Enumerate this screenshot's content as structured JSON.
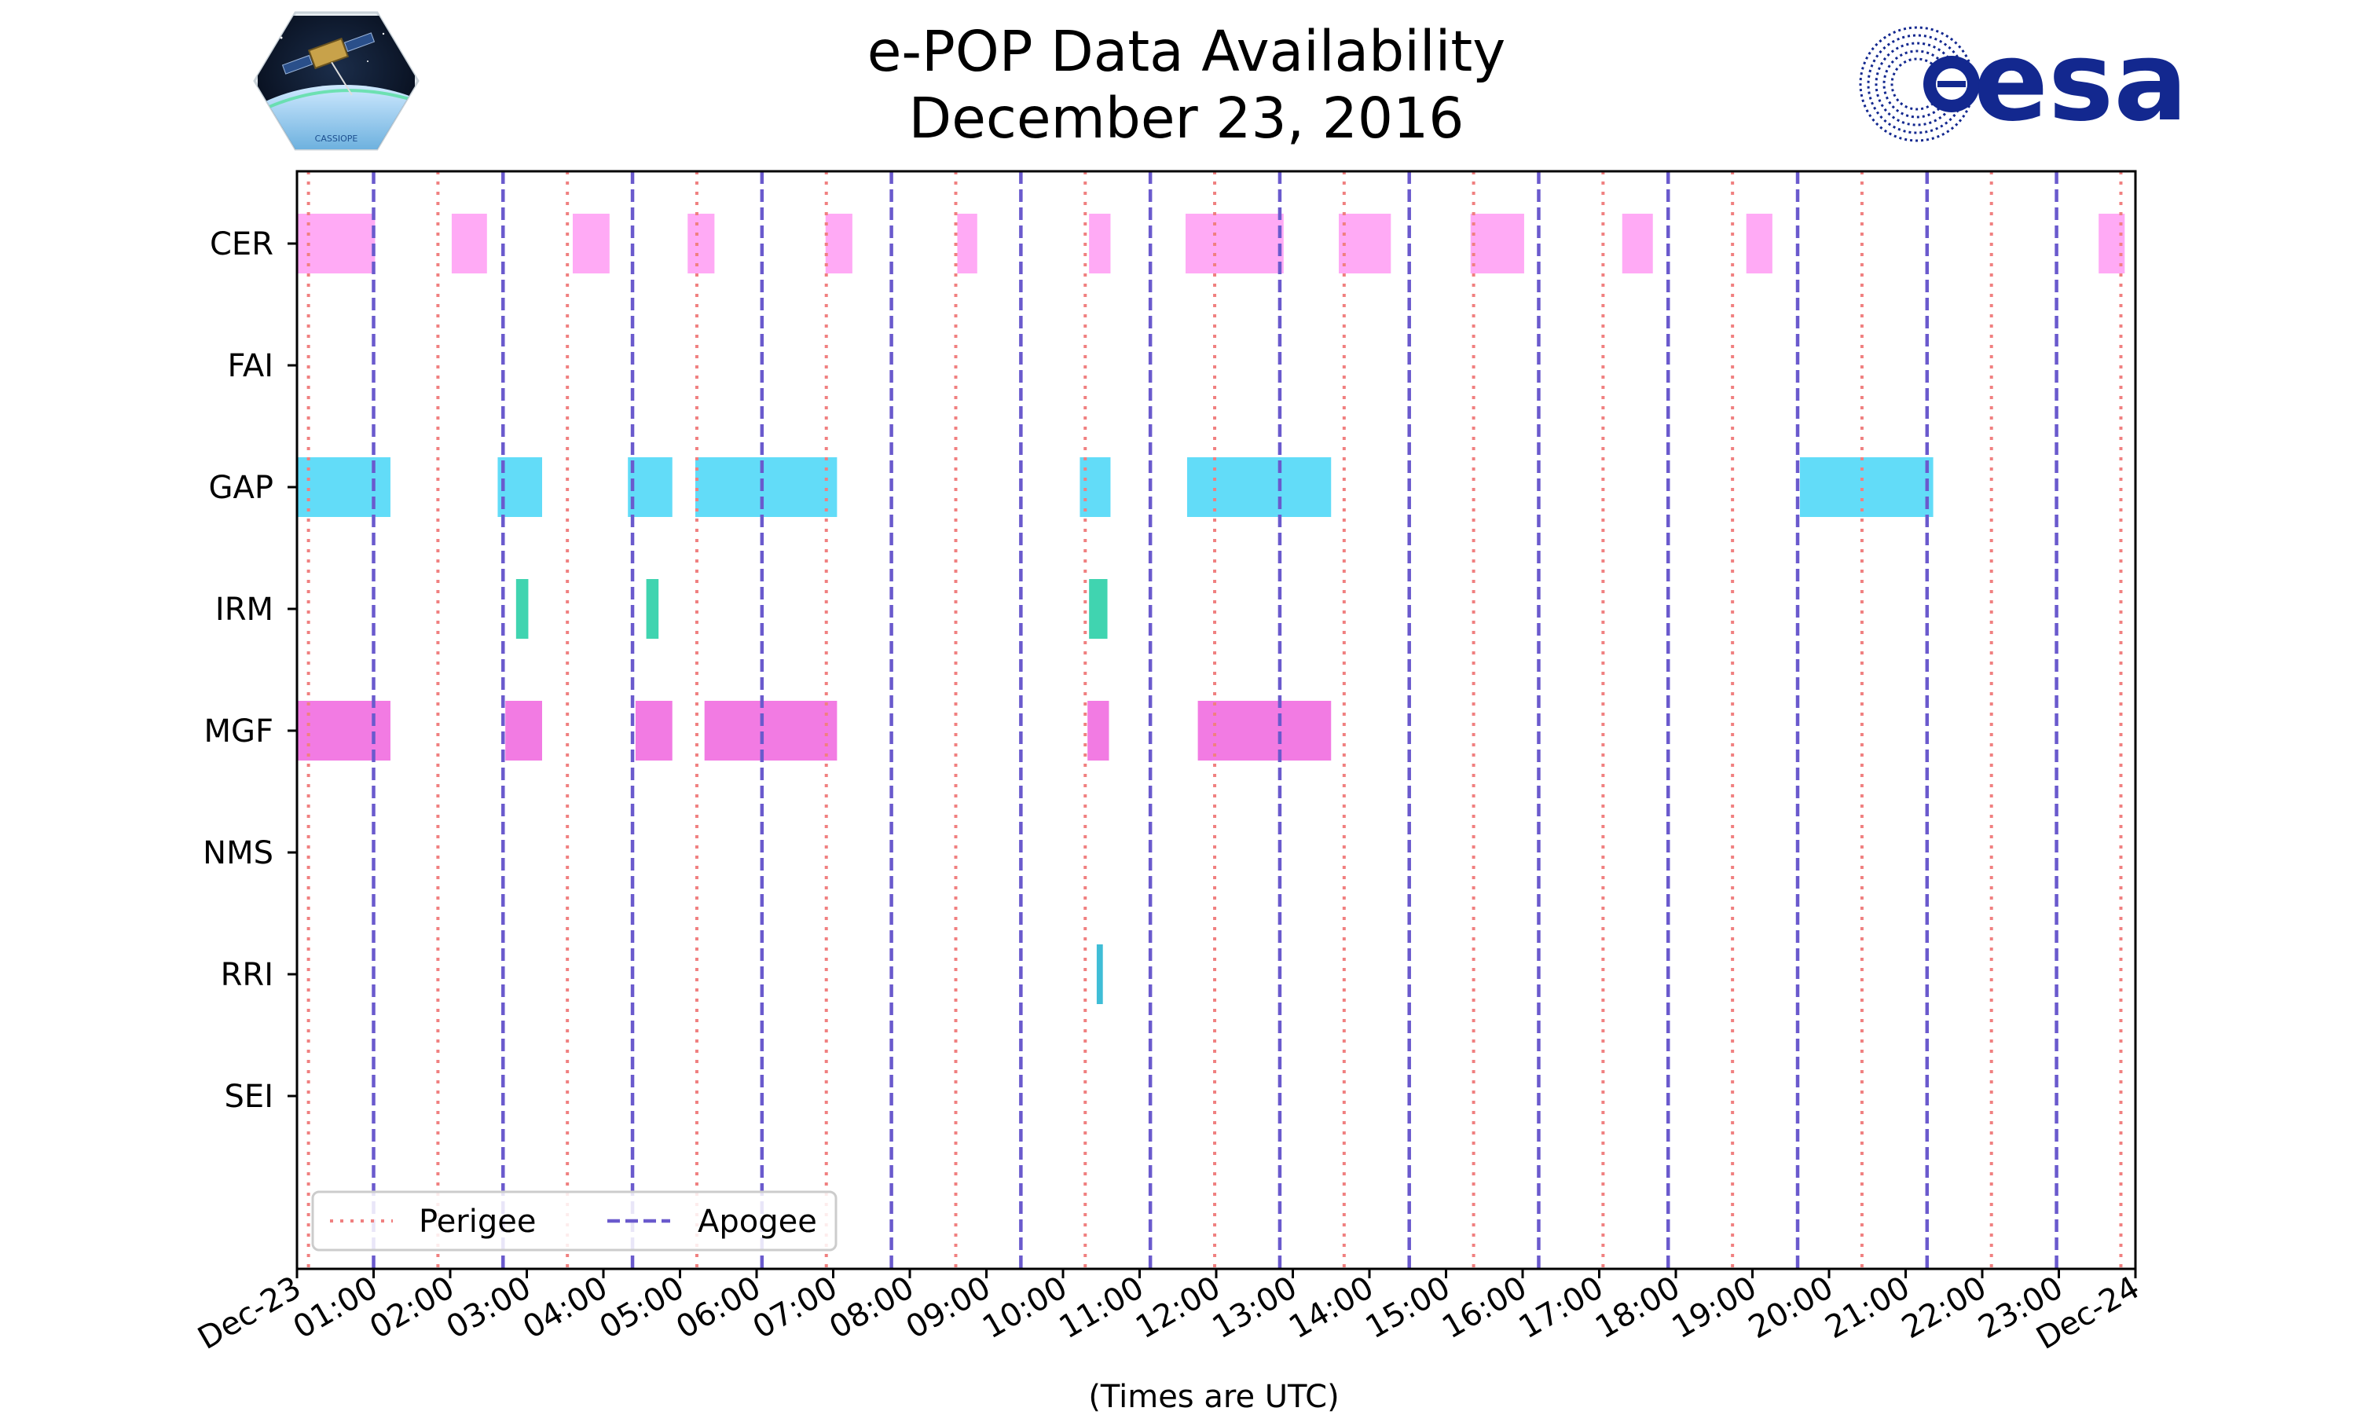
{
  "header": {
    "title_line1": "e-POP Data Availability",
    "title_line2": "December 23, 2016"
  },
  "logos": {
    "left_caption": "CASSIOPE",
    "right_text": "esa"
  },
  "colors": {
    "perigee": "#f08080",
    "apogee": "#6a5acd",
    "CER": "#ffaaf5",
    "GAP": "#62dcf8",
    "IRM": "#40d4b0",
    "MGF": "#f27be3",
    "RRI": "#3fbdd6",
    "esa_blue": "#13288f"
  },
  "chart_data": {
    "type": "timeline",
    "title": "e-POP Data Availability December 23, 2016",
    "xlabel": "(Times are UTC)",
    "ylabel": "",
    "xlim_hours": [
      0,
      24
    ],
    "tick_labels": [
      "Dec-23",
      "01:00",
      "02:00",
      "03:00",
      "04:00",
      "05:00",
      "06:00",
      "07:00",
      "08:00",
      "09:00",
      "10:00",
      "11:00",
      "12:00",
      "13:00",
      "14:00",
      "15:00",
      "16:00",
      "17:00",
      "18:00",
      "19:00",
      "20:00",
      "21:00",
      "22:00",
      "23:00",
      "Dec-24"
    ],
    "instruments": [
      "CER",
      "FAI",
      "GAP",
      "IRM",
      "MGF",
      "NMS",
      "RRI",
      "SEI"
    ],
    "perigee_hours": [
      0.15,
      1.84,
      3.53,
      5.22,
      6.91,
      8.6,
      10.29,
      11.98,
      13.67,
      15.36,
      17.05,
      18.74,
      20.43,
      22.12,
      23.81
    ],
    "apogee_hours": [
      1.0,
      2.69,
      4.38,
      6.07,
      7.76,
      9.45,
      11.14,
      12.83,
      14.52,
      16.21,
      17.9,
      19.59,
      21.28,
      22.97
    ],
    "intervals": {
      "CER": [
        [
          0.0,
          1.02
        ],
        [
          2.02,
          2.48
        ],
        [
          3.6,
          4.08
        ],
        [
          5.1,
          5.45
        ],
        [
          6.9,
          7.25
        ],
        [
          8.62,
          8.88
        ],
        [
          10.34,
          10.62
        ],
        [
          11.6,
          12.88
        ],
        [
          13.6,
          14.28
        ],
        [
          15.32,
          16.02
        ],
        [
          17.3,
          17.7
        ],
        [
          18.92,
          19.26
        ],
        [
          23.52,
          23.86
        ]
      ],
      "FAI": [],
      "GAP": [
        [
          0.0,
          1.22
        ],
        [
          2.62,
          3.2
        ],
        [
          4.32,
          4.9
        ],
        [
          5.2,
          7.05
        ],
        [
          10.22,
          10.62
        ],
        [
          11.62,
          13.5
        ],
        [
          19.62,
          21.36
        ]
      ],
      "IRM": [
        [
          2.86,
          3.02
        ],
        [
          4.56,
          4.72
        ],
        [
          10.34,
          10.58
        ]
      ],
      "MGF": [
        [
          0.0,
          1.22
        ],
        [
          2.72,
          3.2
        ],
        [
          4.42,
          4.9
        ],
        [
          5.32,
          7.05
        ],
        [
          10.32,
          10.6
        ],
        [
          11.76,
          13.5
        ]
      ],
      "NMS": [],
      "RRI": [
        [
          10.44,
          10.52
        ]
      ],
      "SEI": []
    },
    "legend": {
      "position": "lower-left",
      "entries": [
        "Perigee",
        "Apogee"
      ]
    }
  }
}
